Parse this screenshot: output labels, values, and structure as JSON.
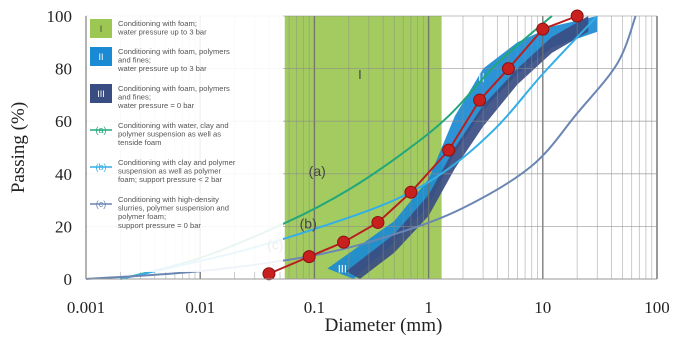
{
  "chart_data": {
    "type": "line",
    "xlabel": "Diameter (mm)",
    "ylabel": "Passing (%)",
    "xscale": "log",
    "xlim": [
      0.001,
      100
    ],
    "ylim": [
      0,
      100
    ],
    "xticks": [
      0.001,
      0.01,
      0.1,
      1,
      10,
      100
    ],
    "xtick_labels": [
      "0.001",
      "0.01",
      "0.1",
      "1",
      "10",
      "100"
    ],
    "yticks": [
      0,
      20,
      40,
      60,
      80,
      100
    ],
    "ytick_labels": [
      "0",
      "20",
      "40",
      "60",
      "80",
      "100"
    ],
    "grid": "log-minor vertical lines and major horizontal lines",
    "zones": [
      {
        "id": "I",
        "label": "I",
        "color": "#9cc752",
        "x_range": [
          0.055,
          1.3
        ],
        "note": "light green region"
      },
      {
        "id": "II",
        "label": "II",
        "color": "#1a8ad4",
        "upper": {
          "x": [
            0.13,
            0.5,
            1.0,
            1.7,
            3.0,
            6.0,
            12,
            30
          ],
          "y": [
            4,
            22,
            38,
            62,
            80,
            90,
            96,
            100
          ]
        },
        "lower": {
          "x": [
            0.22,
            0.5,
            1.0,
            1.7,
            3.0,
            6.0,
            12,
            30
          ],
          "y": [
            0,
            14,
            28,
            48,
            64,
            78,
            88,
            94
          ]
        }
      },
      {
        "id": "III",
        "label": "III",
        "color": "#3a4d82",
        "upper": {
          "x": [
            0.19,
            0.5,
            1.0,
            1.7,
            3.0,
            6.0,
            12,
            25
          ],
          "y": [
            3,
            17,
            32,
            50,
            66,
            80,
            92,
            100
          ]
        },
        "lower": {
          "x": [
            0.25,
            0.5,
            1.0,
            1.7,
            3.0,
            6.0,
            12,
            25
          ],
          "y": [
            0,
            10,
            24,
            42,
            58,
            74,
            86,
            94
          ]
        }
      }
    ],
    "reference_curves": [
      {
        "name": "(a)",
        "color": "#22a77a",
        "x": [
          0.002,
          0.01,
          0.06,
          0.2,
          0.6,
          1.5,
          4,
          12
        ],
        "y": [
          0,
          8,
          22,
          34,
          48,
          62,
          82,
          100
        ]
      },
      {
        "name": "(b)",
        "color": "#33aee6",
        "x": [
          0.002,
          0.02,
          0.1,
          0.5,
          1.5,
          4,
          10,
          30
        ],
        "y": [
          0,
          10,
          19,
          30,
          42,
          58,
          78,
          100
        ]
      },
      {
        "name": "(c)",
        "color": "#6a86b3",
        "x": [
          0.001,
          0.01,
          0.1,
          0.5,
          2,
          8,
          20,
          45,
          65
        ],
        "y": [
          0,
          3,
          9,
          17,
          27,
          43,
          63,
          82,
          100
        ]
      }
    ],
    "series": [
      {
        "color": "#b82020",
        "marker": "circle",
        "x": [
          0.04,
          0.09,
          0.18,
          0.36,
          0.7,
          1.5,
          2.8,
          5,
          10,
          20
        ],
        "y": [
          2,
          8.5,
          14,
          21.5,
          33,
          49,
          68,
          80,
          95,
          100
        ]
      }
    ],
    "legend": {
      "placement": "top-left",
      "entries": [
        {
          "symbol": "I",
          "swatch": "#9cc752",
          "text": [
            "Conditioning with foam;",
            "water pressure up to 3 bar"
          ]
        },
        {
          "symbol": "II",
          "swatch": "#1a8ad4",
          "text": [
            "Conditioning with foam, polymers",
            "and fines;",
            "water pressure up to 3 bar"
          ]
        },
        {
          "symbol": "III",
          "swatch": "#3a4d82",
          "text": [
            "Conditioning with foam, polymers",
            "and fines;",
            "water pressure = 0 bar"
          ]
        },
        {
          "symbol": "(a)",
          "swatch": "#22a77a",
          "text": [
            "Conditioning with water, clay and",
            "polymer suspension as well as",
            "tenside foam"
          ]
        },
        {
          "symbol": "(b)",
          "swatch": "#33aee6",
          "text": [
            "Conditioning with clay and polymer",
            "suspension as well as polymer",
            "foam; support pressure < 2 bar"
          ]
        },
        {
          "symbol": "(c)",
          "swatch": "#6a86b3",
          "text": [
            "Conditioning with high-density",
            "slurries, polymer suspension and",
            "polymer foam;",
            "support pressure = 0 bar"
          ]
        }
      ]
    }
  }
}
